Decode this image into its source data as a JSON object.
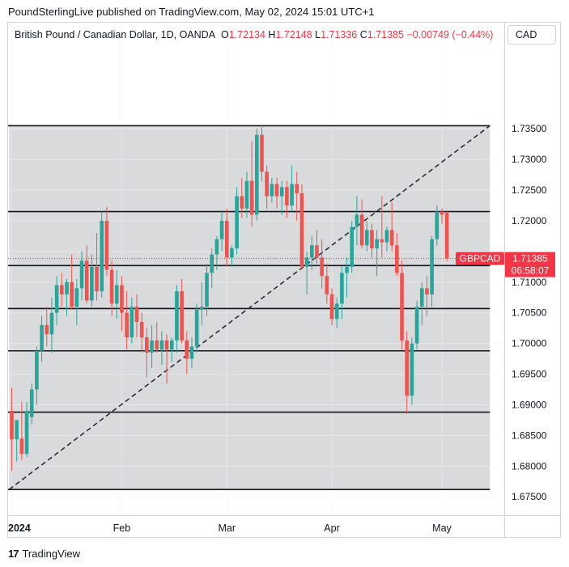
{
  "header": {
    "publish_text": "PoundSterlingLive published on TradingView.com, May 02, 2024 15:01 UTC+1"
  },
  "legend": {
    "title": "British Pound / Canadian Dollar, 1D, OANDA",
    "o_label": "O",
    "o_value": "1.72134",
    "h_label": "H",
    "h_value": "1.72148",
    "l_label": "L",
    "l_value": "1.71336",
    "c_label": "C",
    "c_value": "1.71385",
    "change": "−0.00749 (−0.44%)"
  },
  "currency_badge": "CAD",
  "footer": {
    "logo_mark": "17",
    "logo_text": "TradingView"
  },
  "colors": {
    "up": "#26a69a",
    "down": "#ef5350",
    "shade": "#d9dadb",
    "line": "#131722",
    "price_tag": "#f23645"
  },
  "chart_data": {
    "type": "candlestick",
    "symbol": "GBPCAD",
    "timeframe": "1D",
    "ylim": [
      1.672,
      1.7523
    ],
    "y_ticks": [
      1.735,
      1.73,
      1.725,
      1.72,
      1.715,
      1.71,
      1.705,
      1.7,
      1.695,
      1.69,
      1.685,
      1.68,
      1.675
    ],
    "y_tick_labels": [
      "1.73500",
      "1.73000",
      "1.72500",
      "1.72000",
      "1.71500",
      "1.71000",
      "1.70500",
      "1.70000",
      "1.69500",
      "1.69000",
      "1.68500",
      "1.68000",
      "1.67500"
    ],
    "x_labels": [
      {
        "label": "2024",
        "bar": 0,
        "bold": true
      },
      {
        "label": "Feb",
        "bar": 22
      },
      {
        "label": "Mar",
        "bar": 43
      },
      {
        "label": "Apr",
        "bar": 64
      },
      {
        "label": "May",
        "bar": 86
      }
    ],
    "last_price": {
      "label": "GBPCAD",
      "value": "1.71385",
      "countdown": "06:58:07",
      "price": 1.71385
    },
    "horizontal_levels": [
      1.7355,
      1.7215,
      1.7127,
      1.7057,
      1.6988,
      1.6888,
      1.6762
    ],
    "trendline": {
      "from": {
        "bar": -0.5,
        "price": 1.6762
      },
      "to": {
        "bar": 95.6,
        "price": 1.7355
      }
    },
    "shaded_zone": {
      "from_bar": -0.5,
      "to_bar": 95.6,
      "top": 1.7355,
      "bottom": 1.6762
    },
    "candles": [
      {
        "o": 1.689,
        "h": 1.6928,
        "l": 1.6792,
        "c": 1.6844
      },
      {
        "o": 1.6844,
        "h": 1.6875,
        "l": 1.6808,
        "c": 1.6875
      },
      {
        "o": 1.6845,
        "h": 1.6905,
        "l": 1.681,
        "c": 1.682
      },
      {
        "o": 1.682,
        "h": 1.6905,
        "l": 1.6815,
        "c": 1.689
      },
      {
        "o": 1.688,
        "h": 1.6935,
        "l": 1.6868,
        "c": 1.6925
      },
      {
        "o": 1.6925,
        "h": 1.6995,
        "l": 1.69,
        "c": 1.6988
      },
      {
        "o": 1.6988,
        "h": 1.7045,
        "l": 1.697,
        "c": 1.703
      },
      {
        "o": 1.703,
        "h": 1.706,
        "l": 1.6995,
        "c": 1.7015
      },
      {
        "o": 1.7015,
        "h": 1.7075,
        "l": 1.6985,
        "c": 1.705
      },
      {
        "o": 1.705,
        "h": 1.711,
        "l": 1.703,
        "c": 1.7095
      },
      {
        "o": 1.7095,
        "h": 1.7115,
        "l": 1.706,
        "c": 1.708
      },
      {
        "o": 1.708,
        "h": 1.7105,
        "l": 1.7045,
        "c": 1.71
      },
      {
        "o": 1.71,
        "h": 1.7145,
        "l": 1.7055,
        "c": 1.706
      },
      {
        "o": 1.706,
        "h": 1.7105,
        "l": 1.703,
        "c": 1.709
      },
      {
        "o": 1.709,
        "h": 1.715,
        "l": 1.707,
        "c": 1.7135
      },
      {
        "o": 1.7135,
        "h": 1.716,
        "l": 1.7065,
        "c": 1.707
      },
      {
        "o": 1.707,
        "h": 1.7145,
        "l": 1.706,
        "c": 1.7125
      },
      {
        "o": 1.7125,
        "h": 1.718,
        "l": 1.707,
        "c": 1.7085
      },
      {
        "o": 1.7085,
        "h": 1.7215,
        "l": 1.7075,
        "c": 1.72
      },
      {
        "o": 1.72,
        "h": 1.7222,
        "l": 1.711,
        "c": 1.712
      },
      {
        "o": 1.712,
        "h": 1.7135,
        "l": 1.7045,
        "c": 1.7065
      },
      {
        "o": 1.7065,
        "h": 1.712,
        "l": 1.704,
        "c": 1.7095
      },
      {
        "o": 1.7095,
        "h": 1.711,
        "l": 1.702,
        "c": 1.705
      },
      {
        "o": 1.705,
        "h": 1.7085,
        "l": 1.699,
        "c": 1.701
      },
      {
        "o": 1.701,
        "h": 1.7075,
        "l": 1.7,
        "c": 1.706
      },
      {
        "o": 1.706,
        "h": 1.708,
        "l": 1.701,
        "c": 1.7035
      },
      {
        "o": 1.7035,
        "h": 1.705,
        "l": 1.6985,
        "c": 1.701
      },
      {
        "o": 1.701,
        "h": 1.7025,
        "l": 1.6945,
        "c": 1.6985
      },
      {
        "o": 1.6985,
        "h": 1.703,
        "l": 1.696,
        "c": 1.7005
      },
      {
        "o": 1.7005,
        "h": 1.7035,
        "l": 1.6985,
        "c": 1.699
      },
      {
        "o": 1.699,
        "h": 1.702,
        "l": 1.6965,
        "c": 1.7005
      },
      {
        "o": 1.7005,
        "h": 1.7015,
        "l": 1.6935,
        "c": 1.699
      },
      {
        "o": 1.699,
        "h": 1.701,
        "l": 1.697,
        "c": 1.7005
      },
      {
        "o": 1.7005,
        "h": 1.7095,
        "l": 1.6985,
        "c": 1.7085
      },
      {
        "o": 1.7085,
        "h": 1.7105,
        "l": 1.7,
        "c": 1.7005
      },
      {
        "o": 1.7005,
        "h": 1.702,
        "l": 1.695,
        "c": 1.6975
      },
      {
        "o": 1.6975,
        "h": 1.701,
        "l": 1.696,
        "c": 1.6995
      },
      {
        "o": 1.6995,
        "h": 1.7065,
        "l": 1.6985,
        "c": 1.7055
      },
      {
        "o": 1.7055,
        "h": 1.71,
        "l": 1.703,
        "c": 1.706
      },
      {
        "o": 1.706,
        "h": 1.713,
        "l": 1.7045,
        "c": 1.7115
      },
      {
        "o": 1.7115,
        "h": 1.7155,
        "l": 1.709,
        "c": 1.7145
      },
      {
        "o": 1.7145,
        "h": 1.7175,
        "l": 1.712,
        "c": 1.717
      },
      {
        "o": 1.717,
        "h": 1.7215,
        "l": 1.715,
        "c": 1.72
      },
      {
        "o": 1.72,
        "h": 1.722,
        "l": 1.7125,
        "c": 1.714
      },
      {
        "o": 1.714,
        "h": 1.716,
        "l": 1.7125,
        "c": 1.7155
      },
      {
        "o": 1.7155,
        "h": 1.7255,
        "l": 1.7145,
        "c": 1.724
      },
      {
        "o": 1.724,
        "h": 1.727,
        "l": 1.7205,
        "c": 1.722
      },
      {
        "o": 1.722,
        "h": 1.728,
        "l": 1.7205,
        "c": 1.7265
      },
      {
        "o": 1.7265,
        "h": 1.733,
        "l": 1.719,
        "c": 1.721
      },
      {
        "o": 1.721,
        "h": 1.735,
        "l": 1.72,
        "c": 1.734
      },
      {
        "o": 1.734,
        "h": 1.7355,
        "l": 1.7265,
        "c": 1.728
      },
      {
        "o": 1.728,
        "h": 1.729,
        "l": 1.722,
        "c": 1.724
      },
      {
        "o": 1.724,
        "h": 1.727,
        "l": 1.723,
        "c": 1.726
      },
      {
        "o": 1.726,
        "h": 1.727,
        "l": 1.722,
        "c": 1.724
      },
      {
        "o": 1.724,
        "h": 1.7265,
        "l": 1.721,
        "c": 1.7255
      },
      {
        "o": 1.7255,
        "h": 1.7265,
        "l": 1.7205,
        "c": 1.7225
      },
      {
        "o": 1.7225,
        "h": 1.729,
        "l": 1.7215,
        "c": 1.726
      },
      {
        "o": 1.726,
        "h": 1.728,
        "l": 1.72,
        "c": 1.7245
      },
      {
        "o": 1.7245,
        "h": 1.726,
        "l": 1.712,
        "c": 1.7125
      },
      {
        "o": 1.7125,
        "h": 1.715,
        "l": 1.708,
        "c": 1.714
      },
      {
        "o": 1.714,
        "h": 1.7175,
        "l": 1.712,
        "c": 1.716
      },
      {
        "o": 1.716,
        "h": 1.7185,
        "l": 1.713,
        "c": 1.714
      },
      {
        "o": 1.714,
        "h": 1.717,
        "l": 1.709,
        "c": 1.711
      },
      {
        "o": 1.711,
        "h": 1.713,
        "l": 1.7065,
        "c": 1.708
      },
      {
        "o": 1.708,
        "h": 1.709,
        "l": 1.703,
        "c": 1.704
      },
      {
        "o": 1.704,
        "h": 1.7075,
        "l": 1.7025,
        "c": 1.7065
      },
      {
        "o": 1.7065,
        "h": 1.7125,
        "l": 1.704,
        "c": 1.7115
      },
      {
        "o": 1.7115,
        "h": 1.714,
        "l": 1.7075,
        "c": 1.7125
      },
      {
        "o": 1.7125,
        "h": 1.72,
        "l": 1.7115,
        "c": 1.719
      },
      {
        "o": 1.719,
        "h": 1.724,
        "l": 1.716,
        "c": 1.721
      },
      {
        "o": 1.721,
        "h": 1.7235,
        "l": 1.7155,
        "c": 1.716
      },
      {
        "o": 1.716,
        "h": 1.72,
        "l": 1.715,
        "c": 1.7185
      },
      {
        "o": 1.7185,
        "h": 1.7195,
        "l": 1.714,
        "c": 1.7155
      },
      {
        "o": 1.7155,
        "h": 1.7185,
        "l": 1.711,
        "c": 1.717
      },
      {
        "o": 1.717,
        "h": 1.724,
        "l": 1.714,
        "c": 1.7165
      },
      {
        "o": 1.7165,
        "h": 1.719,
        "l": 1.715,
        "c": 1.7185
      },
      {
        "o": 1.7185,
        "h": 1.723,
        "l": 1.715,
        "c": 1.716
      },
      {
        "o": 1.716,
        "h": 1.718,
        "l": 1.711,
        "c": 1.7115
      },
      {
        "o": 1.7115,
        "h": 1.7135,
        "l": 1.699,
        "c": 1.7005
      },
      {
        "o": 1.7005,
        "h": 1.702,
        "l": 1.6885,
        "c": 1.6915
      },
      {
        "o": 1.6915,
        "h": 1.701,
        "l": 1.69,
        "c": 1.7
      },
      {
        "o": 1.7,
        "h": 1.707,
        "l": 1.699,
        "c": 1.706
      },
      {
        "o": 1.706,
        "h": 1.71,
        "l": 1.703,
        "c": 1.709
      },
      {
        "o": 1.709,
        "h": 1.711,
        "l": 1.7045,
        "c": 1.708
      },
      {
        "o": 1.708,
        "h": 1.7175,
        "l": 1.706,
        "c": 1.717
      },
      {
        "o": 1.717,
        "h": 1.7225,
        "l": 1.716,
        "c": 1.7215
      },
      {
        "o": 1.7215,
        "h": 1.722,
        "l": 1.7195,
        "c": 1.721
      },
      {
        "o": 1.7213,
        "h": 1.7215,
        "l": 1.7134,
        "c": 1.7139
      }
    ]
  }
}
